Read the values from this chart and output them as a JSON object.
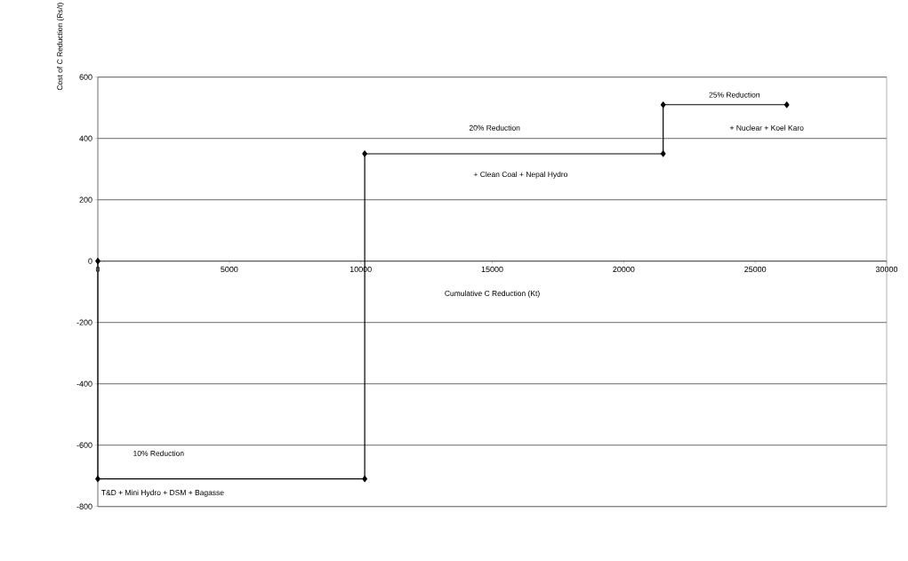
{
  "chart_data": {
    "type": "line",
    "xlabel": "Cumulative C Reduction (Kt)",
    "ylabel": "Cost of C Reduction (Rs/t)",
    "x": [
      0,
      0,
      10150,
      10150,
      21500,
      21500,
      26200
    ],
    "series": [
      {
        "color": "#000000",
        "values": [
          0,
          -710,
          -710,
          350,
          350,
          510,
          510
        ]
      }
    ],
    "xlim": [
      0,
      30000
    ],
    "xticks": [
      0,
      5000,
      10000,
      15000,
      20000,
      25000,
      30000
    ],
    "ylim": [
      -800,
      600
    ],
    "yticks": [
      -800,
      -600,
      -400,
      -200,
      0,
      200,
      400,
      600
    ],
    "grid": "y",
    "marker": "diamond",
    "line_style": "solid",
    "annotations": [
      "10% Reduction",
      "T&D + Mini Hydro + DSM + Bagasse",
      "20% Reduction",
      "+ Clean Coal + Nepal Hydro",
      "25% Reduction",
      "+ Nuclear + Koel Karo"
    ]
  }
}
